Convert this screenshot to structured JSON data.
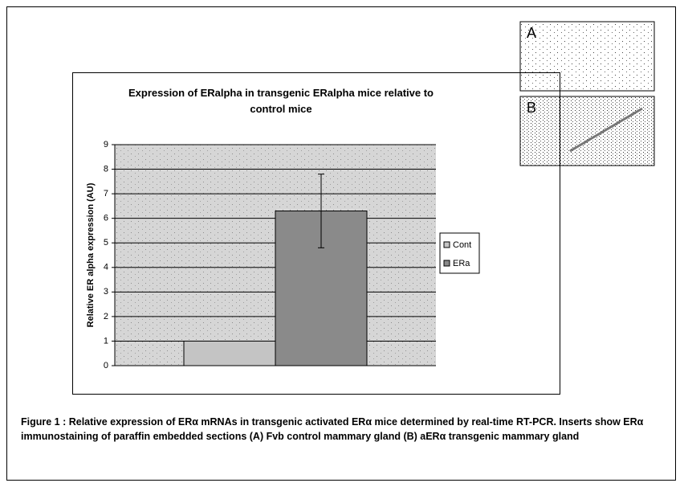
{
  "chart_data": {
    "type": "bar",
    "title": "Expression of  ERalpha in transgenic ERalpha mice relative to control mice",
    "y_label": "Relative ER alpha expression (AU)",
    "categories": [
      null
    ],
    "series": [
      {
        "name": "Cont",
        "color": "#c4c4c4",
        "values": [
          1
        ]
      },
      {
        "name": "ERa",
        "color": "#8a8a8a",
        "values": [
          6.3
        ],
        "errors": [
          1.5
        ]
      }
    ],
    "ylim": [
      0,
      9
    ],
    "yticks": [
      0,
      1,
      2,
      3,
      4,
      5,
      6,
      7,
      8,
      9
    ],
    "grid": true,
    "legend": "right"
  },
  "inserts": [
    "A",
    "B"
  ],
  "caption": "Figure 1 : Relative expression of ERα mRNAs in transgenic activated ERα mice determined by real-time RT-PCR. Inserts show ERα immunostaining of paraffin embedded sections (A) Fvb control mammary gland (B) aERα transgenic mammary gland"
}
